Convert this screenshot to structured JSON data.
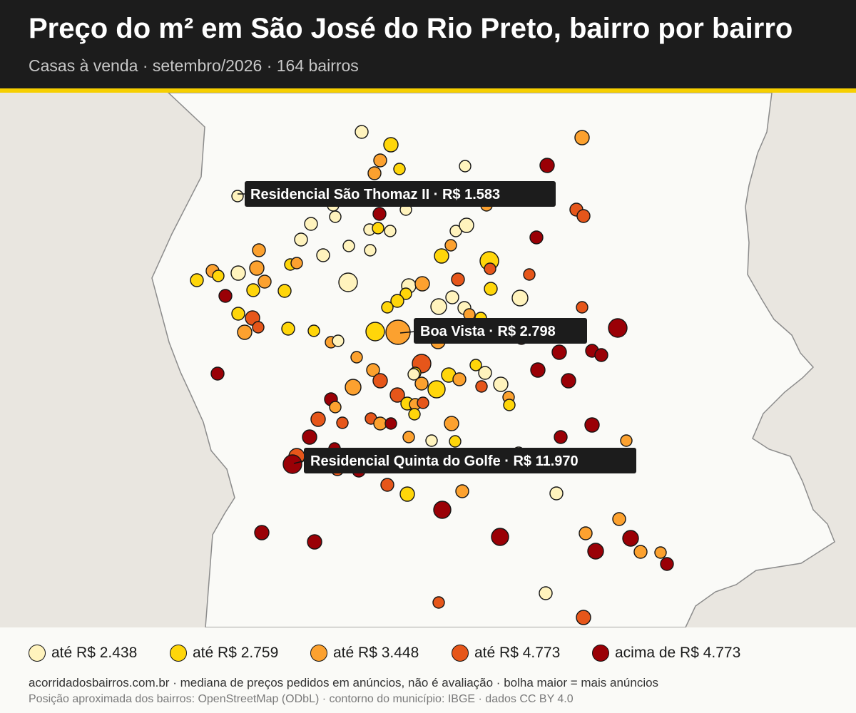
{
  "header": {
    "title": "Preço do m² em São José do Rio Preto, bairro por bairro",
    "subtitle": "Casas à venda · setembro/2026 · 164 bairros"
  },
  "colors": {
    "tier1": "#fff3bd",
    "tier2": "#ffd60a",
    "tier3": "#fca12f",
    "tier4": "#e6561a",
    "tier5": "#9a0006",
    "header_bg": "#1c1c1c",
    "accent": "#f6cf00"
  },
  "legend": [
    {
      "label": "até R$ 2.438",
      "tier": 1
    },
    {
      "label": "até R$ 2.759",
      "tier": 2
    },
    {
      "label": "até R$ 3.448",
      "tier": 3
    },
    {
      "label": "até R$ 4.773",
      "tier": 4
    },
    {
      "label": "acima de R$ 4.773",
      "tier": 5
    }
  ],
  "callouts": [
    {
      "label": "Residencial São Thomaz II · R$ 1.583"
    },
    {
      "label": "Boa Vista · R$ 2.798"
    },
    {
      "label": "Residencial Quinta do Golfe · R$ 11.970"
    }
  ],
  "footer": {
    "line1": "acorridadosbairros.com.br · mediana de preços pedidos em anúncios, não é avaliação · bolha maior = mais anúncios",
    "line2": "Posição aproximada dos bairros: OpenStreetMap (ODbL) · contorno do município: IBGE · dados CC BY 4.0"
  }
}
